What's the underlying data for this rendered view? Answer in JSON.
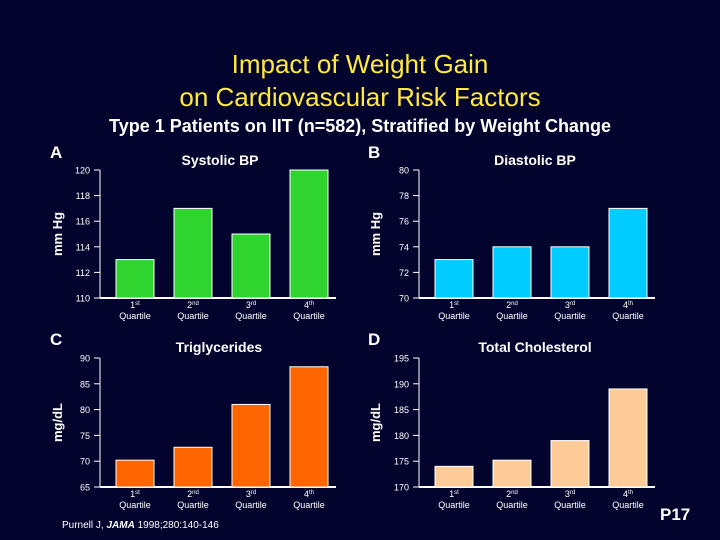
{
  "title_line1": "Impact of Weight Gain",
  "title_line2": "on Cardiovascular Risk Factors",
  "subtitle": "Type 1 Patients on IIT (n=582), Stratified by Weight Change",
  "citation": {
    "author": "Purnell J, ",
    "journal": "JAMA",
    "rest": " 1998;280:140-146"
  },
  "page_label": "P17",
  "colors": {
    "background": "#02042e",
    "title": "#ffe93a",
    "systolic": "#2fd42f",
    "diastolic": "#00ccff",
    "triglycerides": "#ff6600",
    "cholesterol": "#ffcc99"
  },
  "chart_data": [
    {
      "type": "bar",
      "panel": "A",
      "title": "Systolic BP",
      "ylabel": "mm Hg",
      "categories": [
        {
          "num": "1",
          "sup": "st",
          "label": "Quartile"
        },
        {
          "num": "2",
          "sup": "nd",
          "label": "Quartile"
        },
        {
          "num": "3",
          "sup": "rd",
          "label": "Quartile"
        },
        {
          "num": "4",
          "sup": "th",
          "label": "Quartile"
        }
      ],
      "values": [
        113,
        117,
        115,
        120
      ],
      "ylim": [
        110,
        120
      ],
      "yticks": [
        110,
        112,
        114,
        116,
        118,
        120
      ],
      "color": "#2fd42f",
      "grid": false
    },
    {
      "type": "bar",
      "panel": "B",
      "title": "Diastolic BP",
      "ylabel": "mm Hg",
      "categories": [
        {
          "num": "1",
          "sup": "st",
          "label": "Quartile"
        },
        {
          "num": "2",
          "sup": "nd",
          "label": "Quartile"
        },
        {
          "num": "3",
          "sup": "rd",
          "label": "Quartile"
        },
        {
          "num": "4",
          "sup": "th",
          "label": "Quartile"
        }
      ],
      "values": [
        73,
        74,
        74,
        77
      ],
      "ylim": [
        70,
        80
      ],
      "yticks": [
        70,
        72,
        74,
        76,
        78,
        80
      ],
      "color": "#00ccff",
      "grid": false
    },
    {
      "type": "bar",
      "panel": "C",
      "title": "Triglycerides",
      "ylabel": "mg/dL",
      "categories": [
        {
          "num": "1",
          "sup": "st",
          "label": "Quartile"
        },
        {
          "num": "2",
          "sup": "nd",
          "label": "Quartile"
        },
        {
          "num": "3",
          "sup": "rd",
          "label": "Quartile"
        },
        {
          "num": "4",
          "sup": "th",
          "label": "Quartile"
        }
      ],
      "values": [
        70.2,
        72.7,
        81,
        88.3
      ],
      "ylim": [
        65,
        90
      ],
      "yticks": [
        65,
        70,
        75,
        80,
        85,
        90
      ],
      "color": "#ff6600",
      "grid": false
    },
    {
      "type": "bar",
      "panel": "D",
      "title": "Total Cholesterol",
      "ylabel": "mg/dL",
      "categories": [
        {
          "num": "1",
          "sup": "st",
          "label": "Quartile"
        },
        {
          "num": "2",
          "sup": "nd",
          "label": "Quartile"
        },
        {
          "num": "3",
          "sup": "rd",
          "label": "Quartile"
        },
        {
          "num": "4",
          "sup": "th",
          "label": "Quartile"
        }
      ],
      "values": [
        174,
        175.2,
        179,
        189
      ],
      "ylim": [
        170,
        195
      ],
      "yticks": [
        170,
        175,
        180,
        185,
        190,
        195
      ],
      "color": "#ffcc99",
      "grid": false
    }
  ]
}
